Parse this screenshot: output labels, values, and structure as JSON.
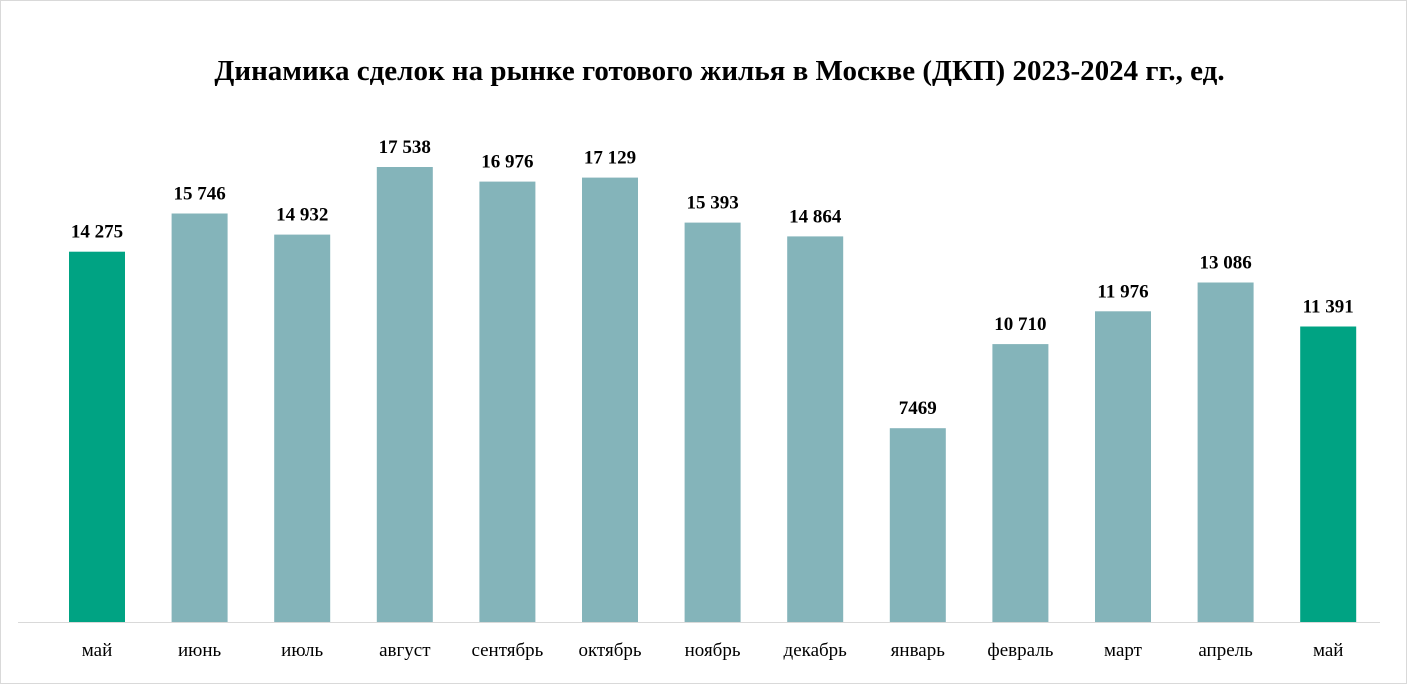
{
  "chart_data": {
    "type": "bar",
    "title": "Динамика сделок на рынке готового жилья в Москве (ДКП) 2023-2024 гг., ед.",
    "categories": [
      "май",
      "июнь",
      "июль",
      "август",
      "сентябрь",
      "октябрь",
      "ноябрь",
      "декабрь",
      "январь",
      "февраль",
      "март",
      "апрель",
      "май"
    ],
    "values": [
      14275,
      15746,
      14932,
      17538,
      16976,
      17129,
      15393,
      14864,
      7469,
      10710,
      11976,
      13086,
      11391
    ],
    "value_labels": [
      "14 275",
      "15 746",
      "14 932",
      "17 538",
      "16 976",
      "17 129",
      "15 393",
      "14 864",
      "7469",
      "10 710",
      "11 976",
      "13 086",
      "11 391"
    ],
    "bar_colors": [
      "#00a383",
      "#84b4ba",
      "#84b4ba",
      "#84b4ba",
      "#84b4ba",
      "#84b4ba",
      "#84b4ba",
      "#84b4ba",
      "#84b4ba",
      "#84b4ba",
      "#84b4ba",
      "#84b4ba",
      "#00a383"
    ],
    "highlight_color": "#00a383",
    "base_color": "#84b4ba",
    "ylim": [
      0,
      20000
    ],
    "grid": false,
    "legend": "none"
  }
}
